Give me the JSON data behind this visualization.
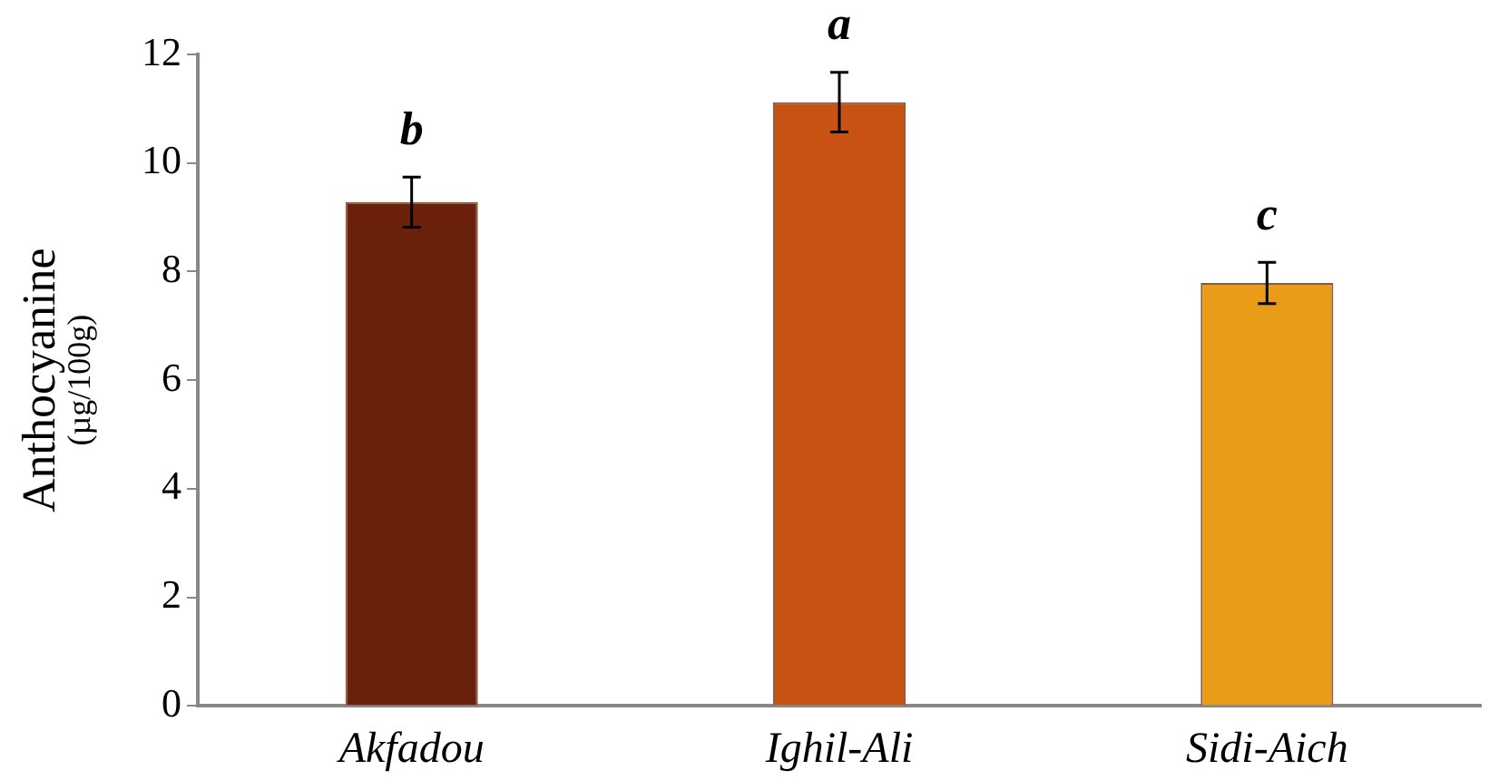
{
  "chart_data": {
    "type": "bar",
    "ylabel": "Anthocyanine\n(µg/100g)",
    "categories": [
      "Akfadou",
      "Ighil-Ali",
      "Sidi-Aich"
    ],
    "values": [
      9.28,
      11.12,
      7.79
    ],
    "colors": [
      "#6b200b",
      "#c85213",
      "#e89c18"
    ],
    "errors": [
      0.46,
      0.55,
      0.38
    ],
    "ylim": [
      0,
      12
    ],
    "yticks": [
      0,
      2,
      4,
      6,
      8,
      10,
      12
    ],
    "grid": false,
    "legend": false,
    "annotations": [
      {
        "text": "b",
        "x": "Akfadou",
        "y": 9.74
      },
      {
        "text": "a",
        "x": "Ighil-Ali",
        "y": 11.67
      },
      {
        "text": "c",
        "x": "Sidi-Aich",
        "y": 8.17
      }
    ]
  }
}
